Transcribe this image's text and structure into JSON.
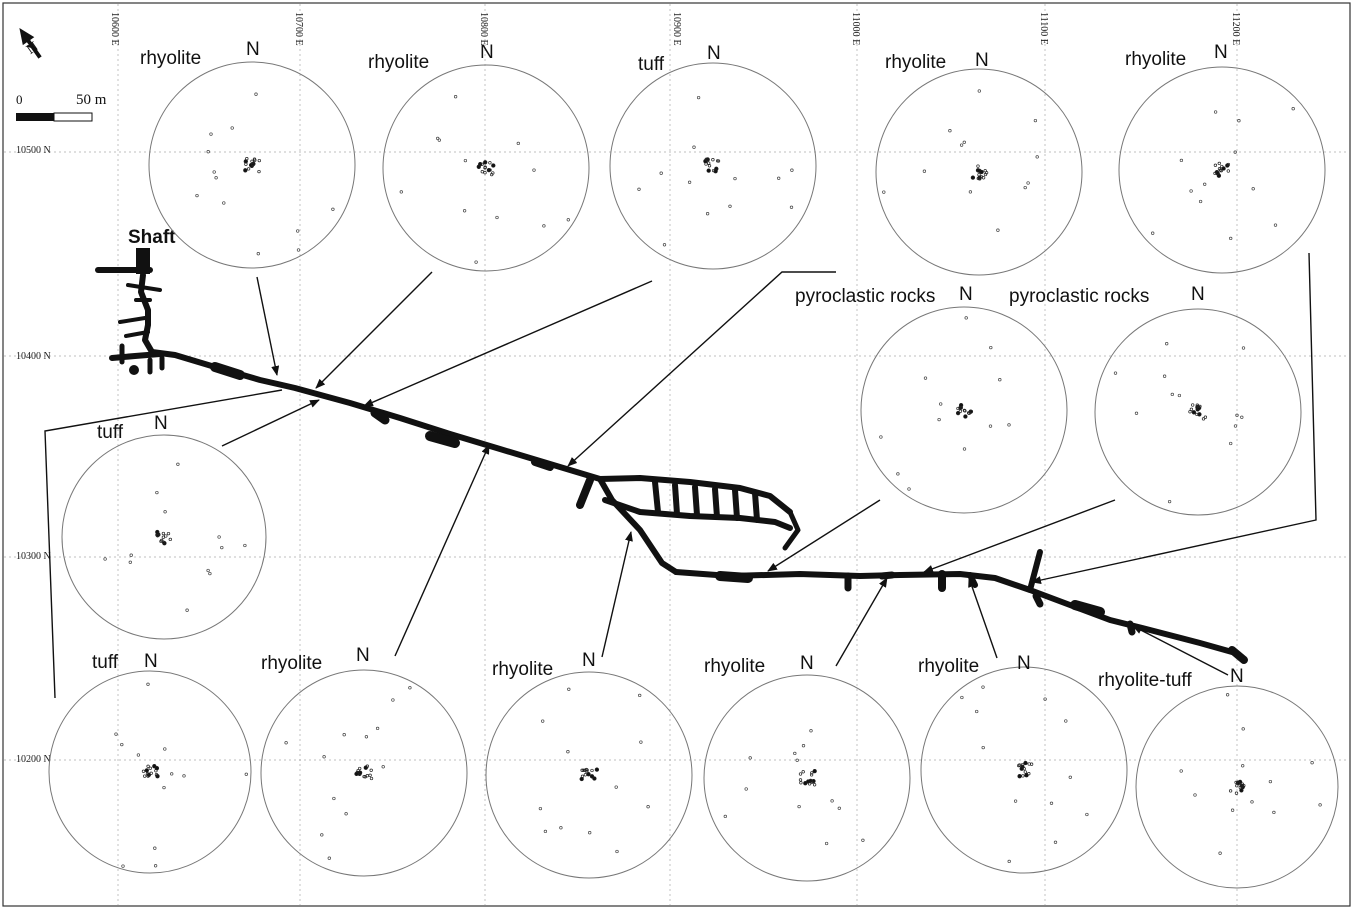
{
  "map": {
    "grid_east_labels": [
      "10600 E",
      "10700 E",
      "10800 E",
      "10900 E",
      "11000 E",
      "11100 E",
      "11200 E"
    ],
    "grid_north_labels": [
      "10500 N",
      "10400 N",
      "10300 N",
      "10200 N"
    ],
    "scale": {
      "zero": "0",
      "end": "50 m"
    },
    "north_arrow": "N",
    "shaft_label": "Shaft"
  },
  "stereonets": [
    {
      "rock": "rhyolite",
      "north": "N"
    },
    {
      "rock": "rhyolite",
      "north": "N"
    },
    {
      "rock": "tuff",
      "north": "N"
    },
    {
      "rock": "rhyolite",
      "north": "N"
    },
    {
      "rock": "rhyolite",
      "north": "N"
    },
    {
      "rock": "pyroclastic rocks",
      "north": "N"
    },
    {
      "rock": "pyroclastic rocks",
      "north": "N"
    },
    {
      "rock": "tuff",
      "north": "N"
    },
    {
      "rock": "tuff",
      "north": "N"
    },
    {
      "rock": "rhyolite",
      "north": "N"
    },
    {
      "rock": "rhyolite",
      "north": "N"
    },
    {
      "rock": "rhyolite",
      "north": "N"
    },
    {
      "rock": "rhyolite",
      "north": "N"
    },
    {
      "rock": "rhyolite-tuff",
      "north": "N"
    }
  ]
}
